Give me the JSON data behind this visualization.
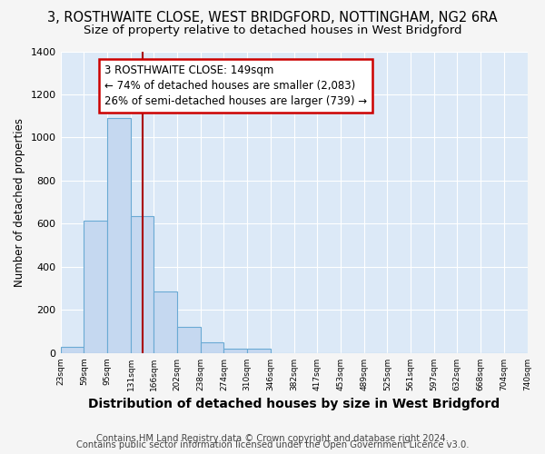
{
  "title1": "3, ROSTHWAITE CLOSE, WEST BRIDGFORD, NOTTINGHAM, NG2 6RA",
  "title2": "Size of property relative to detached houses in West Bridgford",
  "xlabel": "Distribution of detached houses by size in West Bridgford",
  "ylabel": "Number of detached properties",
  "footnote1": "Contains HM Land Registry data © Crown copyright and database right 2024.",
  "footnote2": "Contains public sector information licensed under the Open Government Licence v3.0.",
  "annotation_text": "3 ROSTHWAITE CLOSE: 149sqm\n← 74% of detached houses are smaller (2,083)\n26% of semi-detached houses are larger (739) →",
  "bin_edges": [
    23,
    59,
    95,
    131,
    166,
    202,
    238,
    274,
    310,
    346,
    382,
    417,
    453,
    489,
    525,
    561,
    597,
    632,
    668,
    704,
    740
  ],
  "bar_values": [
    30,
    615,
    1090,
    635,
    285,
    120,
    50,
    20,
    20,
    0,
    0,
    0,
    0,
    0,
    0,
    0,
    0,
    0,
    0,
    0
  ],
  "bar_color": "#c5d8f0",
  "bar_edge_color": "#6aaad4",
  "vline_color": "#aa0000",
  "vline_x": 149,
  "ylim": [
    0,
    1400
  ],
  "yticks": [
    0,
    200,
    400,
    600,
    800,
    1000,
    1200,
    1400
  ],
  "annotation_box_color": "#cc0000",
  "background_color": "#dce9f7",
  "grid_color": "#ffffff",
  "fig_bg_color": "#f5f5f5",
  "title1_fontsize": 10.5,
  "title2_fontsize": 9.5,
  "ylabel_fontsize": 8.5,
  "xlabel_fontsize": 10,
  "footnote_fontsize": 7.2,
  "annotation_fontsize": 8.5
}
